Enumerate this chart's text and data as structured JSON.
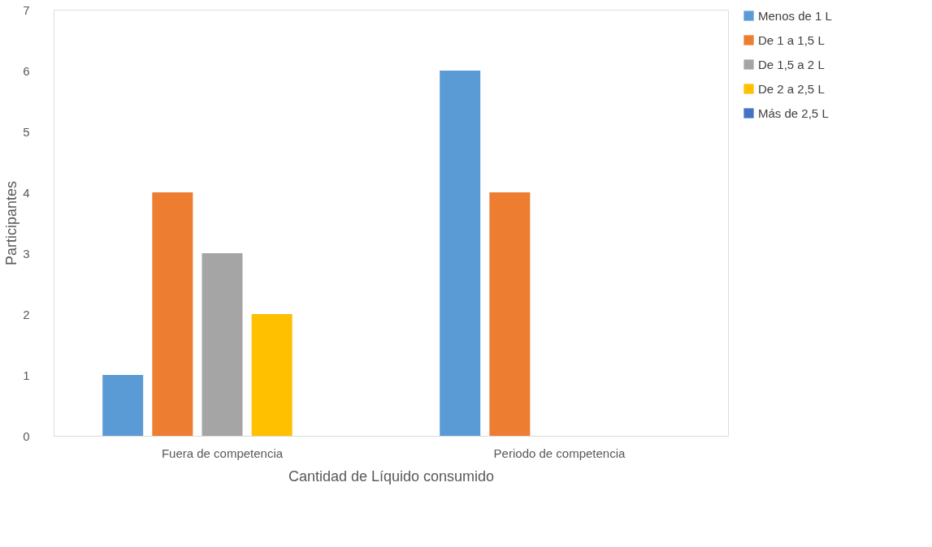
{
  "chart_data": {
    "type": "bar",
    "xlabel": "Cantidad de Líquido consumido",
    "ylabel": "Participantes",
    "categories": [
      "Fuera de competencia",
      "Periodo de competencia"
    ],
    "series": [
      {
        "name": "Menos de 1 L",
        "color": "#5b9bd5",
        "values": [
          1,
          6
        ]
      },
      {
        "name": "De 1 a 1,5 L",
        "color": "#ed7d31",
        "values": [
          4,
          4
        ]
      },
      {
        "name": "De 1,5 a 2 L",
        "color": "#a5a5a5",
        "values": [
          3,
          0
        ]
      },
      {
        "name": "De 2 a 2,5 L",
        "color": "#ffc000",
        "values": [
          2,
          0
        ]
      },
      {
        "name": "Más de 2,5 L",
        "color": "#4472c4",
        "values": [
          0,
          0
        ]
      }
    ],
    "ylim": [
      0,
      7
    ],
    "yticks": [
      0,
      1,
      2,
      3,
      4,
      5,
      6,
      7
    ],
    "grid": false,
    "legend": "right"
  }
}
